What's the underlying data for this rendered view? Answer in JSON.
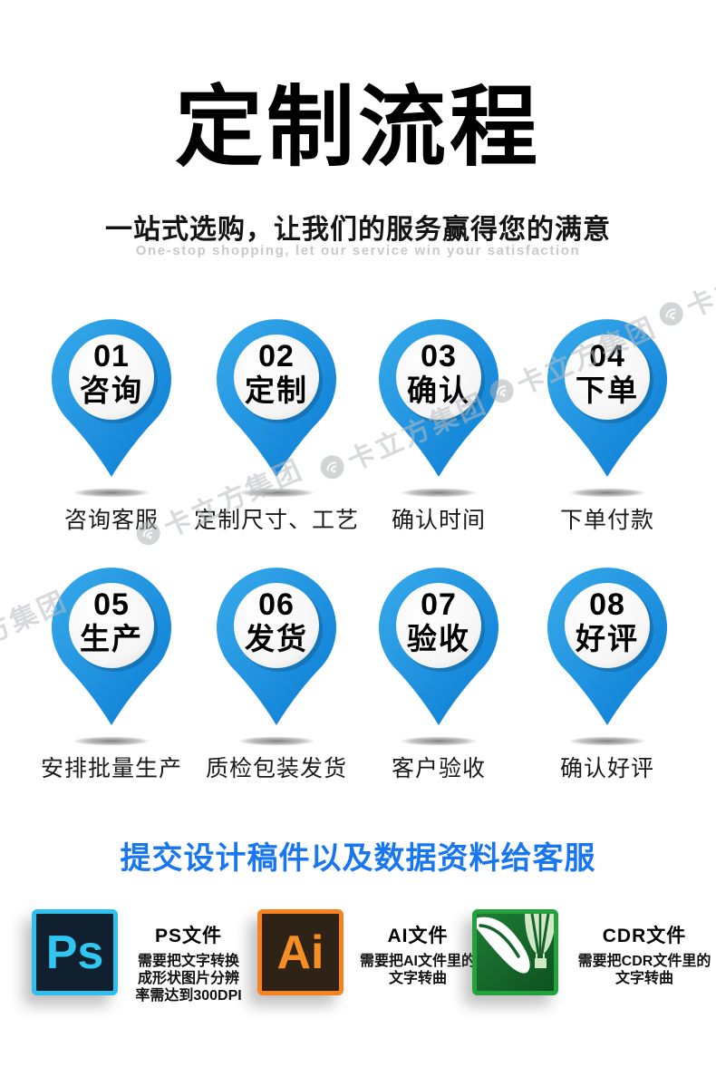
{
  "header": {
    "title": "定制流程",
    "subtitle": "一站式选购，让我们的服务赢得您的满意",
    "subtitle_en": "One-stop shopping, let our service win your satisfaction"
  },
  "steps": [
    {
      "num": "01",
      "name": "咨询",
      "caption": "咨询客服"
    },
    {
      "num": "02",
      "name": "定制",
      "caption": "定制尺寸、工艺"
    },
    {
      "num": "03",
      "name": "确认",
      "caption": "确认时间"
    },
    {
      "num": "04",
      "name": "下单",
      "caption": "下单付款"
    },
    {
      "num": "05",
      "name": "生产",
      "caption": "安排批量生产"
    },
    {
      "num": "06",
      "name": "发货",
      "caption": "质检包装发货"
    },
    {
      "num": "07",
      "name": "验收",
      "caption": "客户验收"
    },
    {
      "num": "08",
      "name": "好评",
      "caption": "确认好评"
    }
  ],
  "note": "提交设计稿件以及数据资料给客服",
  "file_types": [
    {
      "icon": "photoshop-icon",
      "abbr": "Ps",
      "title": "PS文件",
      "desc": "需要把文字转换成形状图片分辨率需达到300DPI",
      "bg": "#10202f",
      "border": "#2fc0ee",
      "fg": "#31c5f1"
    },
    {
      "icon": "illustrator-icon",
      "abbr": "Ai",
      "title": "AI文件",
      "desc": "需要把AI文件里的文字转曲",
      "bg": "#2e2316",
      "border": "#f6831e",
      "fg": "#f78e24"
    },
    {
      "icon": "coreldraw-icon",
      "abbr": "",
      "title": "CDR文件",
      "desc": "需要把CDR文件里的文字转曲",
      "bg": "#16632a",
      "border": "#23a23b",
      "fg": "#ffffff"
    }
  ],
  "watermark": {
    "text": "卡立方集团"
  },
  "colors": {
    "accent_blue": "#1877f0",
    "pin_blue_light": "#38abeb",
    "pin_blue_dark": "#0a7bd4",
    "subtitle_en_gray": "#c9c9c9"
  }
}
